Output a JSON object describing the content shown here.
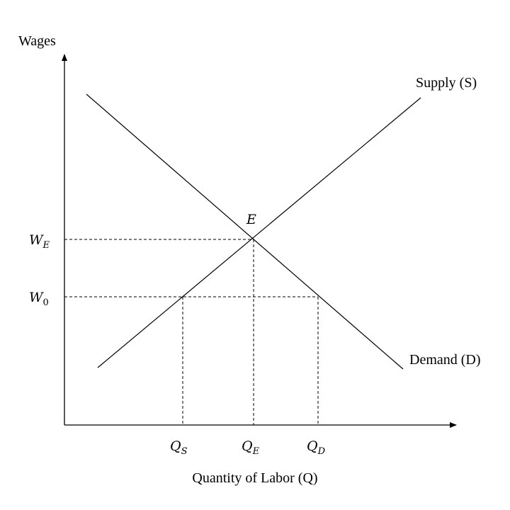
{
  "axes": {
    "y_label": "Wages",
    "x_label": "Quantity of Labor (Q)"
  },
  "curves": {
    "supply_label": "Supply (S)",
    "demand_label": "Demand (D)"
  },
  "equilibrium": {
    "point_label": "E"
  },
  "wage_levels": [
    {
      "base": "W",
      "sub": "E"
    },
    {
      "base": "W",
      "sub": "0"
    }
  ],
  "quantity_levels": [
    {
      "base": "Q",
      "sub": "S"
    },
    {
      "base": "Q",
      "sub": "E"
    },
    {
      "base": "Q",
      "sub": "D"
    }
  ],
  "colors": {
    "line": "#000000",
    "background": "#ffffff"
  }
}
